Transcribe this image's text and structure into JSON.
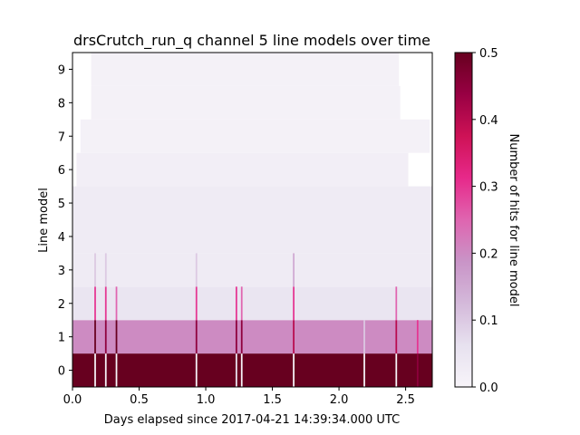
{
  "chart_data": {
    "type": "heatmap",
    "title": "drsCrutch_run_q channel 5 line models over time",
    "xlabel": "Days elapsed since 2017-04-21 14:39:34.000 UTC",
    "ylabel": "Line model",
    "colorbar_label": "Number of hits for line model",
    "xlim": [
      0.0,
      2.7
    ],
    "ylim": [
      -0.5,
      9.5
    ],
    "clim": [
      0.0,
      0.5
    ],
    "x_ticks": [
      "0.0",
      "0.5",
      "1.0",
      "1.5",
      "2.0",
      "2.5"
    ],
    "y_ticks": [
      "0",
      "1",
      "2",
      "3",
      "4",
      "5",
      "6",
      "7",
      "8",
      "9"
    ],
    "colorbar_ticks": [
      "0.0",
      "0.1",
      "0.2",
      "0.3",
      "0.4",
      "0.5"
    ],
    "colormap": [
      "#f7f4f9",
      "#e7e1ef",
      "#d4b9da",
      "#c994c7",
      "#df65b0",
      "#e7298a",
      "#ce1256",
      "#980043",
      "#67001f"
    ],
    "row_base_values": [
      0.5,
      0.2,
      0.05,
      0.03,
      0.03,
      0.03,
      0.02,
      0.01,
      0.01,
      0.01
    ],
    "row_extents_days": [
      {
        "model": 0,
        "start": 0.0,
        "end": 2.7
      },
      {
        "model": 1,
        "start": 0.0,
        "end": 2.7
      },
      {
        "model": 2,
        "start": 0.0,
        "end": 2.7
      },
      {
        "model": 3,
        "start": 0.0,
        "end": 2.7
      },
      {
        "model": 4,
        "start": 0.0,
        "end": 2.7
      },
      {
        "model": 5,
        "start": 0.0,
        "end": 2.7
      },
      {
        "model": 6,
        "start": 0.03,
        "end": 2.52
      },
      {
        "model": 7,
        "start": 0.06,
        "end": 2.68
      },
      {
        "model": 8,
        "start": 0.14,
        "end": 2.46
      },
      {
        "model": 9,
        "start": 0.14,
        "end": 2.45
      }
    ],
    "events": [
      {
        "day": 0.17,
        "values": [
          0.0,
          0.5,
          0.3,
          0.1
        ]
      },
      {
        "day": 0.25,
        "values": [
          0.0,
          0.45,
          0.3,
          0.1
        ]
      },
      {
        "day": 0.33,
        "values": [
          0.0,
          0.5,
          0.25
        ]
      },
      {
        "day": 0.93,
        "values": [
          0.0,
          0.45,
          0.3,
          0.1
        ]
      },
      {
        "day": 1.23,
        "values": [
          0.05,
          0.45,
          0.3
        ]
      },
      {
        "day": 1.27,
        "values": [
          0.0,
          0.45,
          0.25
        ]
      },
      {
        "day": 1.66,
        "values": [
          0.0,
          0.4,
          0.3,
          0.15
        ]
      },
      {
        "day": 2.19,
        "values": [
          0.0,
          0.1
        ]
      },
      {
        "day": 2.43,
        "values": [
          0.0,
          0.4,
          0.25
        ]
      },
      {
        "day": 2.59,
        "values": [
          0.45,
          0.3
        ]
      }
    ],
    "grid": false
  }
}
